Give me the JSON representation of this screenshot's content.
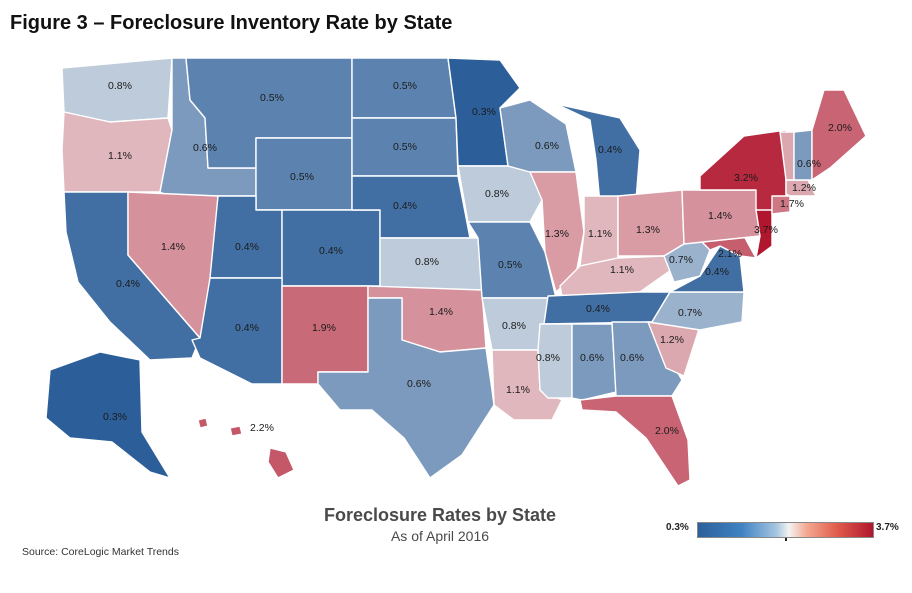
{
  "title": "Figure 3 – Foreclosure Inventory Rate by State",
  "legend": {
    "main": "Foreclosure Rates by State",
    "sub": "As of April 2016",
    "min_label": "0.3%",
    "max_label": "3.7%",
    "color_low": "#2c5f9a",
    "color_mid": "#f3f3f3",
    "color_high": "#b0162e"
  },
  "source": "Source: CoreLogic Market Trends",
  "states": [
    {
      "id": "WA",
      "label": "0.8%",
      "value": 0.8
    },
    {
      "id": "OR",
      "label": "1.1%",
      "value": 1.1
    },
    {
      "id": "CA",
      "label": "0.4%",
      "value": 0.4
    },
    {
      "id": "ID",
      "label": "0.6%",
      "value": 0.6
    },
    {
      "id": "NV",
      "label": "1.4%",
      "value": 1.4
    },
    {
      "id": "MT",
      "label": "0.5%",
      "value": 0.5
    },
    {
      "id": "WY",
      "label": "0.5%",
      "value": 0.5
    },
    {
      "id": "UT",
      "label": "0.4%",
      "value": 0.4
    },
    {
      "id": "AZ",
      "label": "0.4%",
      "value": 0.4
    },
    {
      "id": "CO",
      "label": "0.4%",
      "value": 0.4
    },
    {
      "id": "NM",
      "label": "1.9%",
      "value": 1.9
    },
    {
      "id": "ND",
      "label": "0.5%",
      "value": 0.5
    },
    {
      "id": "SD",
      "label": "0.5%",
      "value": 0.5
    },
    {
      "id": "NE",
      "label": "0.4%",
      "value": 0.4
    },
    {
      "id": "KS",
      "label": "0.8%",
      "value": 0.8
    },
    {
      "id": "OK",
      "label": "1.4%",
      "value": 1.4
    },
    {
      "id": "TX",
      "label": "0.6%",
      "value": 0.6
    },
    {
      "id": "MN",
      "label": "0.3%",
      "value": 0.3
    },
    {
      "id": "IA",
      "label": "0.8%",
      "value": 0.8
    },
    {
      "id": "MO",
      "label": "0.5%",
      "value": 0.5
    },
    {
      "id": "AR",
      "label": "0.8%",
      "value": 0.8
    },
    {
      "id": "LA",
      "label": "1.1%",
      "value": 1.1
    },
    {
      "id": "WI",
      "label": "0.6%",
      "value": 0.6
    },
    {
      "id": "IL",
      "label": "1.3%",
      "value": 1.3
    },
    {
      "id": "MI",
      "label": "0.4%",
      "value": 0.4
    },
    {
      "id": "IN",
      "label": "1.1%",
      "value": 1.1
    },
    {
      "id": "OH",
      "label": "1.3%",
      "value": 1.3
    },
    {
      "id": "KY",
      "label": "1.1%",
      "value": 1.1
    },
    {
      "id": "TN",
      "label": "0.4%",
      "value": 0.4
    },
    {
      "id": "MS",
      "label": "0.8%",
      "value": 0.8
    },
    {
      "id": "AL",
      "label": "0.6%",
      "value": 0.6
    },
    {
      "id": "GA",
      "label": "0.6%",
      "value": 0.6
    },
    {
      "id": "FL",
      "label": "2.0%",
      "value": 2.0
    },
    {
      "id": "SC",
      "label": "1.2%",
      "value": 1.2
    },
    {
      "id": "NC",
      "label": "0.7%",
      "value": 0.7
    },
    {
      "id": "VA",
      "label": "0.4%",
      "value": 0.4
    },
    {
      "id": "WV",
      "label": "0.7%",
      "value": 0.7
    },
    {
      "id": "MD",
      "label": "2.1%",
      "value": 2.1
    },
    {
      "id": "PA",
      "label": "1.4%",
      "value": 1.4
    },
    {
      "id": "NY",
      "label": "3.2%",
      "value": 3.2
    },
    {
      "id": "NJ",
      "label": "3.7%",
      "value": 3.7
    },
    {
      "id": "CT",
      "label": "1.7%",
      "value": 1.7
    },
    {
      "id": "MA",
      "label": "1.2%",
      "value": 1.2
    },
    {
      "id": "VT",
      "label": "",
      "value": 1.2
    },
    {
      "id": "NH",
      "label": "0.6%",
      "value": 0.6
    },
    {
      "id": "ME",
      "label": "2.0%",
      "value": 2.0
    },
    {
      "id": "AK",
      "label": "0.3%",
      "value": 0.3
    },
    {
      "id": "HI",
      "label": "2.2%",
      "value": 2.2
    }
  ]
}
